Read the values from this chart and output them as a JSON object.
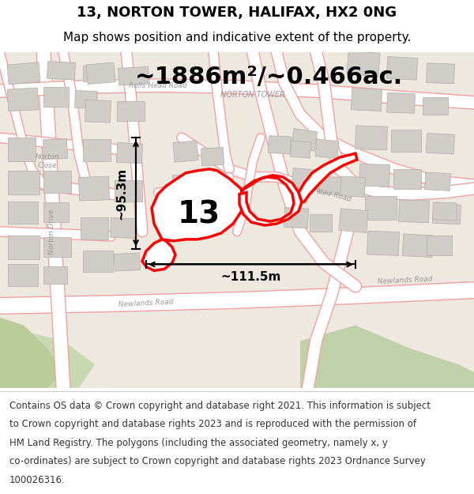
{
  "title": "13, NORTON TOWER, HALIFAX, HX2 0NG",
  "subtitle": "Map shows position and indicative extent of the property.",
  "area_text": "~1886m²/~0.466ac.",
  "number_label": "13",
  "dim_horizontal": "~111.5m",
  "dim_vertical": "~95.3m",
  "footer_lines": [
    "Contains OS data © Crown copyright and database right 2021. This information is subject",
    "to Crown copyright and database rights 2023 and is reproduced with the permission of",
    "HM Land Registry. The polygons (including the associated geometry, namely x, y",
    "co-ordinates) are subject to Crown copyright and database rights 2023 Ordnance Survey",
    "100026316."
  ],
  "map_bg": "#ede8e0",
  "road_color": "#f5a0a0",
  "road_fill": "#ffffff",
  "building_color": "#d0ccc8",
  "building_edge": "#b0aca8",
  "property_color": "#ff0000",
  "green_color1": "#c8d8b0",
  "green_color2": "#b8cc9a",
  "green_color3": "#c0d0a8",
  "label_color": "#999999",
  "title_fontsize": 13,
  "subtitle_fontsize": 11,
  "area_fontsize": 22,
  "number_fontsize": 28,
  "dim_fontsize": 11,
  "footer_fontsize": 8.5
}
